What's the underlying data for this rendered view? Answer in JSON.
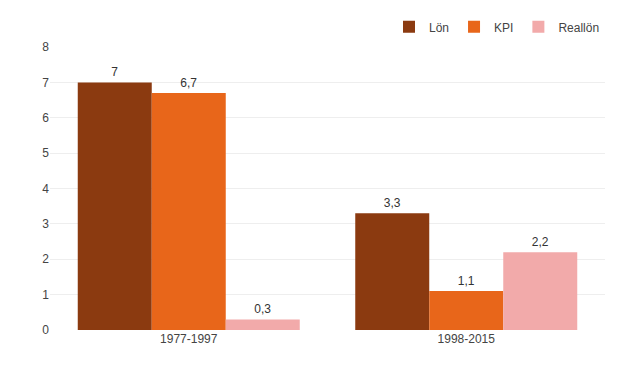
{
  "chart_data": {
    "type": "bar",
    "categories": [
      "1977-1997",
      "1998-2015"
    ],
    "series": [
      {
        "name": "Lön",
        "color": "#8B3A10",
        "values": [
          7.0,
          3.3
        ],
        "value_labels": [
          "7",
          "3,3"
        ]
      },
      {
        "name": "KPI",
        "color": "#E8661A",
        "values": [
          6.7,
          1.1
        ],
        "value_labels": [
          "6,7",
          "1,1"
        ]
      },
      {
        "name": "Reallön",
        "color": "#F2AAAA",
        "values": [
          0.3,
          2.2
        ],
        "value_labels": [
          "0,3",
          "2,2"
        ]
      }
    ],
    "ylim": [
      0,
      8
    ],
    "yticks": [
      0,
      1,
      2,
      3,
      4,
      5,
      6,
      7,
      8
    ],
    "grid": true,
    "legend": "upper right",
    "data_labels": true
  }
}
